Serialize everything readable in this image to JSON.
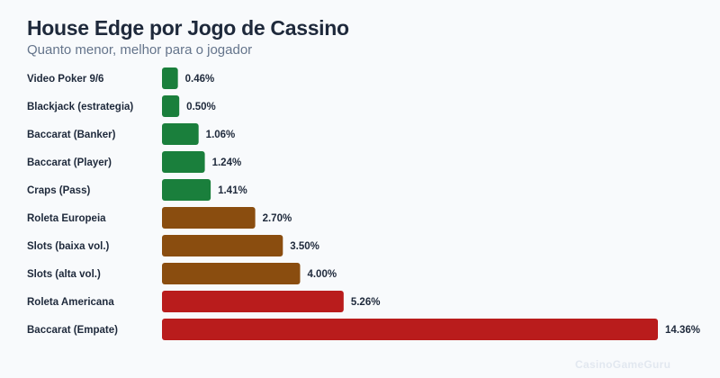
{
  "chart_data": {
    "type": "bar",
    "orientation": "horizontal",
    "title": "House Edge por Jogo de Cassino",
    "subtitle": "Quanto menor, melhor para o jogador",
    "categories": [
      "Video Poker 9/6",
      "Blackjack (estrategia)",
      "Baccarat (Banker)",
      "Baccarat (Player)",
      "Craps (Pass)",
      "Roleta Europeia",
      "Slots (baixa vol.)",
      "Slots (alta vol.)",
      "Roleta Americana",
      "Baccarat (Empate)"
    ],
    "values": [
      0.46,
      0.5,
      1.06,
      1.24,
      1.41,
      2.7,
      3.5,
      4.0,
      5.26,
      14.36
    ],
    "data_labels": [
      "0.46%",
      "0.50%",
      "1.06%",
      "1.24%",
      "1.41%",
      "2.70%",
      "3.50%",
      "4.00%",
      "5.26%",
      "14.36%"
    ],
    "bar_colors": [
      "#1a7f3c",
      "#1a7f3c",
      "#1a7f3c",
      "#1a7f3c",
      "#1a7f3c",
      "#8a4d0f",
      "#8a4d0f",
      "#8a4d0f",
      "#b91c1c",
      "#b91c1c"
    ],
    "xlim": [
      0,
      14.36
    ],
    "grid": false,
    "legend": "none"
  },
  "watermark": "CasinoGameGuru"
}
